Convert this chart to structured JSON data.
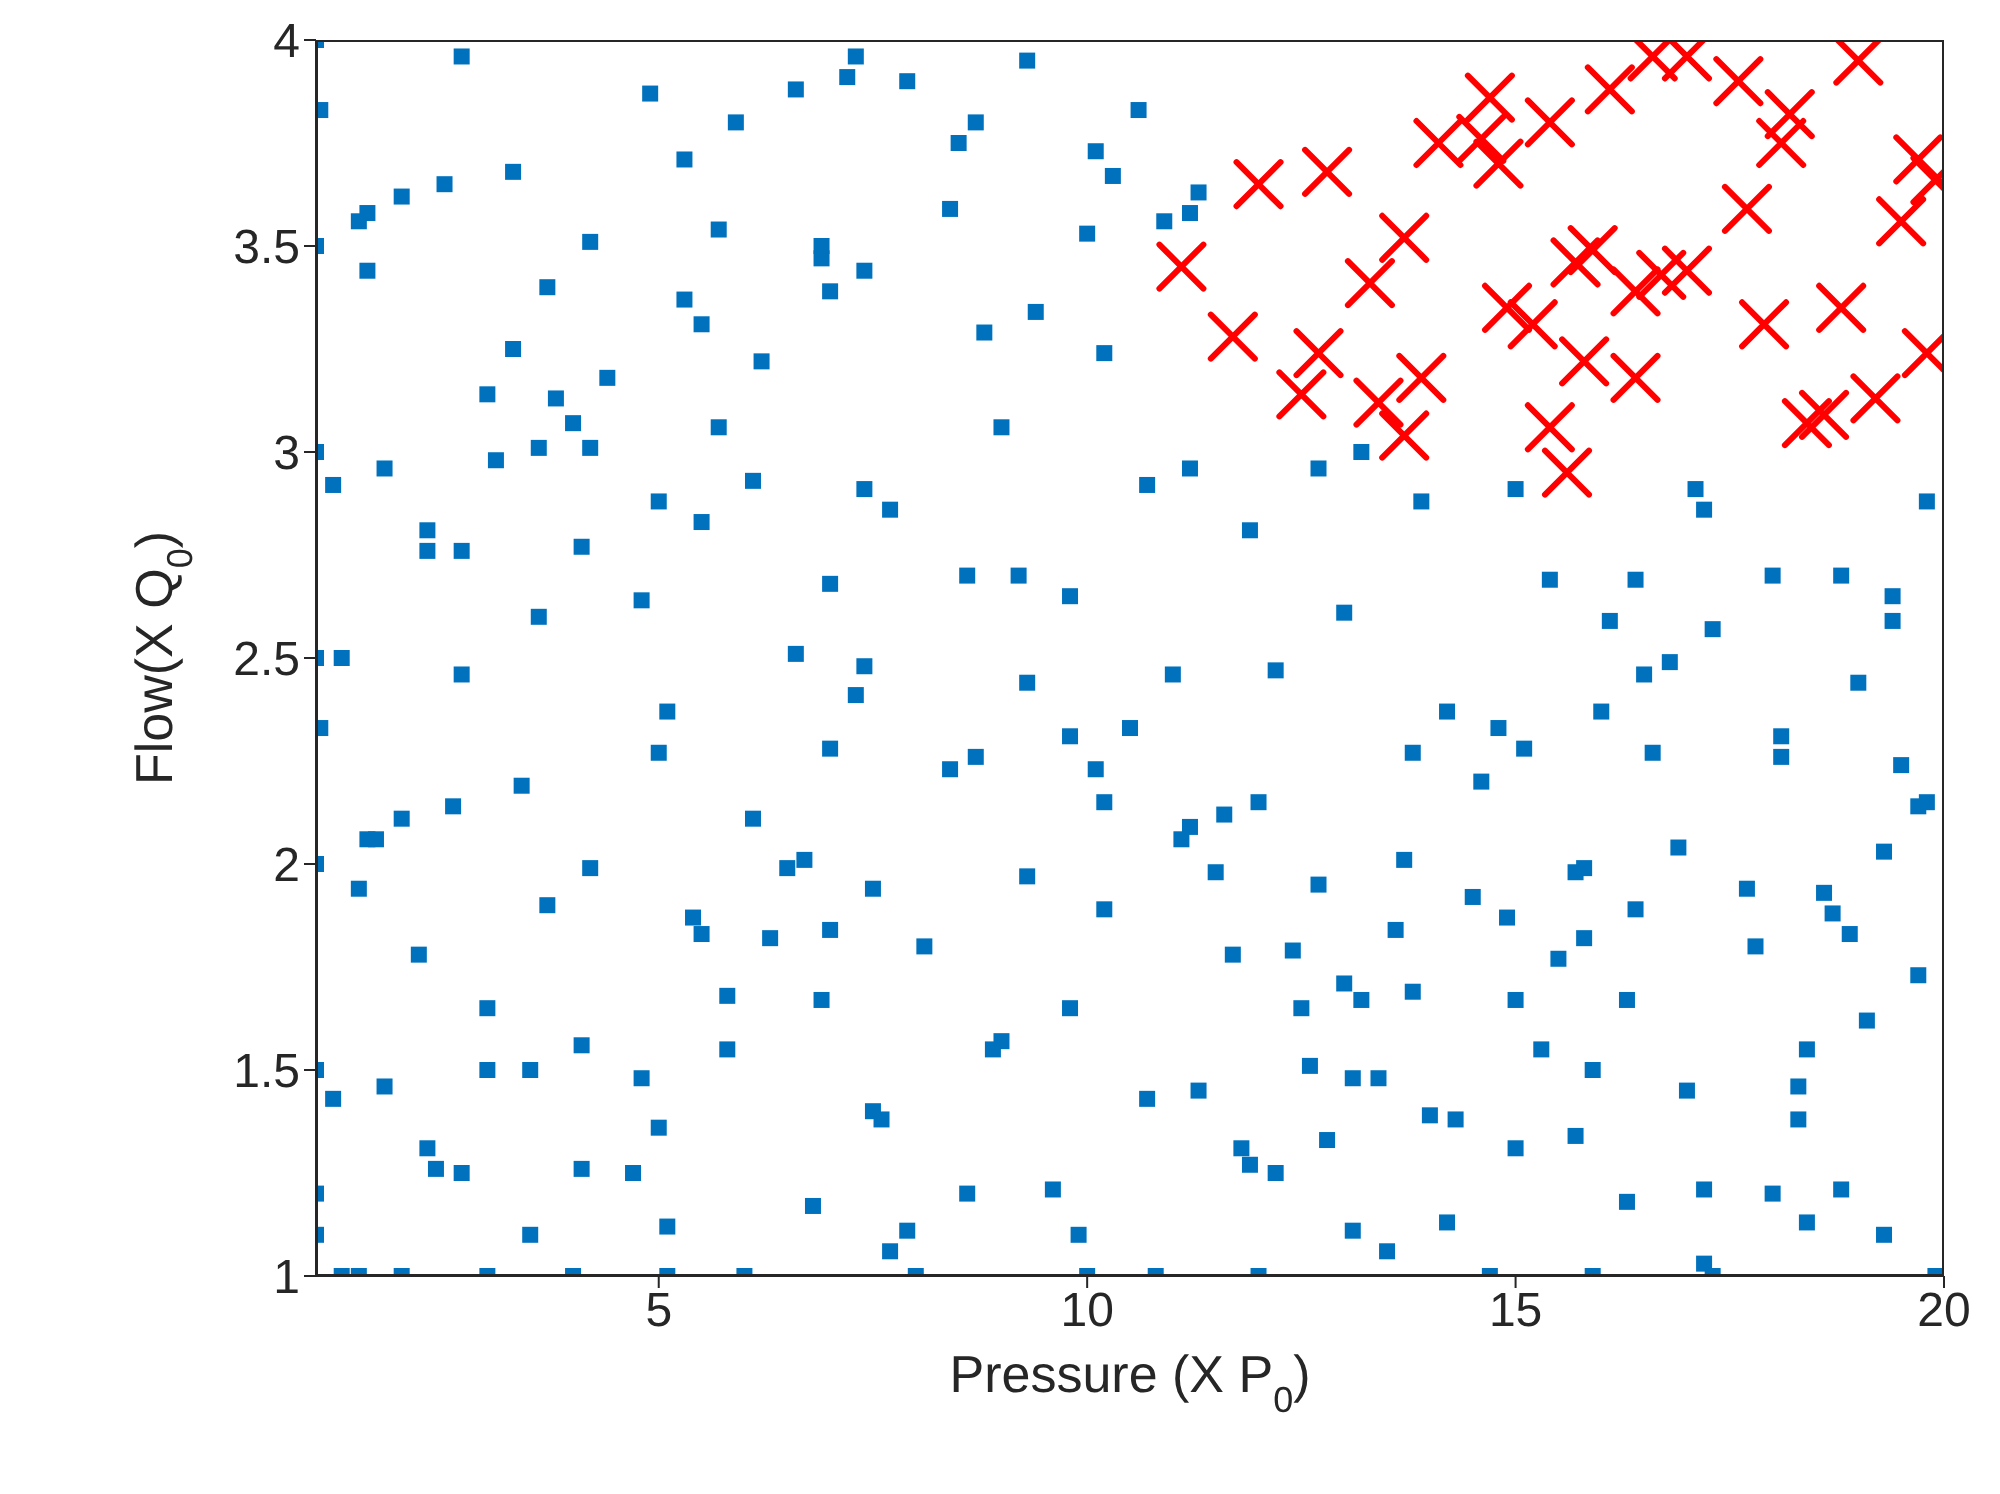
{
  "chart_data": {
    "type": "scatter",
    "xlabel": "Pressure (X P$_{0}$)",
    "ylabel": "Flow(X Q$_{0}$)",
    "xlim": [
      1,
      20
    ],
    "ylim": [
      1,
      4
    ],
    "xticks": [
      5,
      10,
      15,
      20
    ],
    "yticks": [
      1,
      1.5,
      2,
      2.5,
      3,
      3.5,
      4
    ],
    "series": [
      {
        "color": "#0072bd",
        "marker": "square",
        "x": [
          1.0,
          1.05,
          1.0,
          1.0,
          1.2,
          1.0,
          1.3,
          1.05,
          1.0,
          1.0,
          1.2,
          1.0,
          1.0,
          1.3,
          1.5,
          1.5,
          1.6,
          1.6,
          1.8,
          1.5,
          1.6,
          1.7,
          2.0,
          1.8,
          2.0,
          2.2,
          2.0,
          2.3,
          2.3,
          2.3,
          2.4,
          2.6,
          2.5,
          2.7,
          2.7,
          2.7,
          2.7,
          3.0,
          3.0,
          3.0,
          3.1,
          3.0,
          3.3,
          3.3,
          3.5,
          3.5,
          3.4,
          3.6,
          3.6,
          3.7,
          3.7,
          3.8,
          4.0,
          4.0,
          4.1,
          4.1,
          4.1,
          4.2,
          4.2,
          4.2,
          4.4,
          4.7,
          4.8,
          4.8,
          4.9,
          5.0,
          5.1,
          5.0,
          5.0,
          5.1,
          5.1,
          5.3,
          5.3,
          5.5,
          5.4,
          5.5,
          5.5,
          5.7,
          5.7,
          5.8,
          5.8,
          6.0,
          5.9,
          6.1,
          6.1,
          6.2,
          6.3,
          6.5,
          6.6,
          6.6,
          6.7,
          6.8,
          6.9,
          6.9,
          6.9,
          7.0,
          7.0,
          7.0,
          7.0,
          7.2,
          7.3,
          7.3,
          7.4,
          7.4,
          7.4,
          7.5,
          7.5,
          7.6,
          7.7,
          7.7,
          7.9,
          8.0,
          7.9,
          8.1,
          8.4,
          8.4,
          8.5,
          8.6,
          8.7,
          8.6,
          8.7,
          8.8,
          8.9,
          9.0,
          9.0,
          9.2,
          9.3,
          9.3,
          9.3,
          9.4,
          9.6,
          9.8,
          9.8,
          9.8,
          9.9,
          10.0,
          10.0,
          10.1,
          10.1,
          10.2,
          10.2,
          10.2,
          10.3,
          10.5,
          10.6,
          10.7,
          10.7,
          10.8,
          10.9,
          11.0,
          11.1,
          11.2,
          11.2,
          11.2,
          11.3,
          11.3,
          11.5,
          11.6,
          11.7,
          11.8,
          11.9,
          11.9,
          12.0,
          12.0,
          12.2,
          12.2,
          12.4,
          12.5,
          12.6,
          12.7,
          12.7,
          12.8,
          13.0,
          13.0,
          13.1,
          13.1,
          13.2,
          13.2,
          13.4,
          13.5,
          13.6,
          13.7,
          13.8,
          13.8,
          13.9,
          14.0,
          14.2,
          14.2,
          14.3,
          14.5,
          14.6,
          14.7,
          14.8,
          14.9,
          15.0,
          15.0,
          15.0,
          15.1,
          15.3,
          15.4,
          15.5,
          15.7,
          15.7,
          15.8,
          15.8,
          15.9,
          15.9,
          16.0,
          16.1,
          16.3,
          16.3,
          16.4,
          16.4,
          16.5,
          16.6,
          16.8,
          16.9,
          17.0,
          17.1,
          17.2,
          17.2,
          17.2,
          17.3,
          17.3,
          17.7,
          17.8,
          18.0,
          18.0,
          18.1,
          18.1,
          18.3,
          18.3,
          18.4,
          18.4,
          18.6,
          18.7,
          18.8,
          18.9,
          18.8,
          19.0,
          19.1,
          19.3,
          19.3,
          19.4,
          19.4,
          19.5,
          19.7,
          19.7,
          19.8,
          19.9,
          19.8
        ],
        "values": [
          4.0,
          3.83,
          3.5,
          3.0,
          2.92,
          2.5,
          2.5,
          2.33,
          2.0,
          1.5,
          1.43,
          1.2,
          1.1,
          1.0,
          1.0,
          3.56,
          3.44,
          3.58,
          2.96,
          1.94,
          2.06,
          2.06,
          1.0,
          1.46,
          2.11,
          1.78,
          3.62,
          2.81,
          2.76,
          1.31,
          1.26,
          2.14,
          3.65,
          3.96,
          2.76,
          2.46,
          1.25,
          3.14,
          1.5,
          1.65,
          2.98,
          1.0,
          3.25,
          3.68,
          1.1,
          1.5,
          2.19,
          2.6,
          3.01,
          3.4,
          1.9,
          3.13,
          1.0,
          3.07,
          2.77,
          1.26,
          1.56,
          3.01,
          3.51,
          1.99,
          3.18,
          1.25,
          2.64,
          1.48,
          3.87,
          2.27,
          2.37,
          1.36,
          2.88,
          1.0,
          1.12,
          3.71,
          3.37,
          3.31,
          1.87,
          1.83,
          2.83,
          3.54,
          3.06,
          1.68,
          1.55,
          1.0,
          3.8,
          2.93,
          2.11,
          3.22,
          1.82,
          1.99,
          3.88,
          2.51,
          2.01,
          1.17,
          3.47,
          3.5,
          1.67,
          3.39,
          2.28,
          2.68,
          1.84,
          3.91,
          3.96,
          2.41,
          2.48,
          3.44,
          2.91,
          1.94,
          1.4,
          1.38,
          2.86,
          1.06,
          1.11,
          1.0,
          3.9,
          1.8,
          3.59,
          2.23,
          3.75,
          2.7,
          2.26,
          1.2,
          3.8,
          3.29,
          1.55,
          3.06,
          1.57,
          2.7,
          2.44,
          1.97,
          3.95,
          3.34,
          1.21,
          1.65,
          2.65,
          2.31,
          1.1,
          1.0,
          3.53,
          3.73,
          2.23,
          1.89,
          2.15,
          3.24,
          3.67,
          2.33,
          3.83,
          2.92,
          1.43,
          1.0,
          3.56,
          2.46,
          2.06,
          3.58,
          2.96,
          2.09,
          1.45,
          3.63,
          1.98,
          2.12,
          1.78,
          1.31,
          1.27,
          2.81,
          2.15,
          1.0,
          2.47,
          1.25,
          1.79,
          1.65,
          1.51,
          1.95,
          2.96,
          1.33,
          1.71,
          2.61,
          1.48,
          1.11,
          1.67,
          3.0,
          1.48,
          1.06,
          1.84,
          2.01,
          2.27,
          1.69,
          2.88,
          1.39,
          2.37,
          1.13,
          1.38,
          1.92,
          2.2,
          1.0,
          2.33,
          1.87,
          1.67,
          2.91,
          1.31,
          2.28,
          1.55,
          2.69,
          1.77,
          1.34,
          1.98,
          1.99,
          1.82,
          1.0,
          1.5,
          2.37,
          2.59,
          1.18,
          1.67,
          1.89,
          2.69,
          2.46,
          2.27,
          2.49,
          2.04,
          1.45,
          2.91,
          1.21,
          2.86,
          1.03,
          2.57,
          1.0,
          1.94,
          1.8,
          2.7,
          1.2,
          2.26,
          2.31,
          1.38,
          1.46,
          1.13,
          1.55,
          1.93,
          1.88,
          2.7,
          1.83,
          1.21,
          2.44,
          1.62,
          2.03,
          1.1,
          2.59,
          2.65,
          2.24,
          2.14,
          1.73,
          2.88,
          1.0,
          2.15
        ]
      },
      {
        "color": "#ff0000",
        "marker": "cross",
        "x": [
          11.1,
          11.7,
          12.0,
          12.5,
          12.7,
          12.8,
          13.3,
          13.4,
          13.7,
          13.7,
          13.9,
          14.1,
          14.6,
          14.7,
          14.8,
          14.9,
          15.2,
          15.4,
          15.4,
          15.6,
          15.8,
          15.7,
          15.9,
          16.1,
          16.4,
          16.4,
          16.6,
          16.7,
          17.0,
          17.0,
          17.6,
          17.7,
          17.9,
          18.1,
          18.2,
          18.4,
          18.6,
          18.8,
          19.0,
          19.2,
          19.5,
          19.7,
          19.8,
          19.9
        ],
        "values": [
          3.45,
          3.28,
          3.65,
          3.14,
          3.24,
          3.68,
          3.41,
          3.12,
          3.04,
          3.52,
          3.18,
          3.75,
          3.76,
          3.86,
          3.7,
          3.35,
          3.31,
          3.8,
          3.06,
          2.95,
          3.22,
          3.46,
          3.49,
          3.88,
          3.18,
          3.39,
          3.96,
          3.43,
          3.96,
          3.44,
          3.9,
          3.59,
          3.31,
          3.75,
          3.82,
          3.07,
          3.09,
          3.35,
          3.95,
          3.13,
          3.56,
          3.71,
          3.24,
          3.66
        ]
      }
    ]
  }
}
